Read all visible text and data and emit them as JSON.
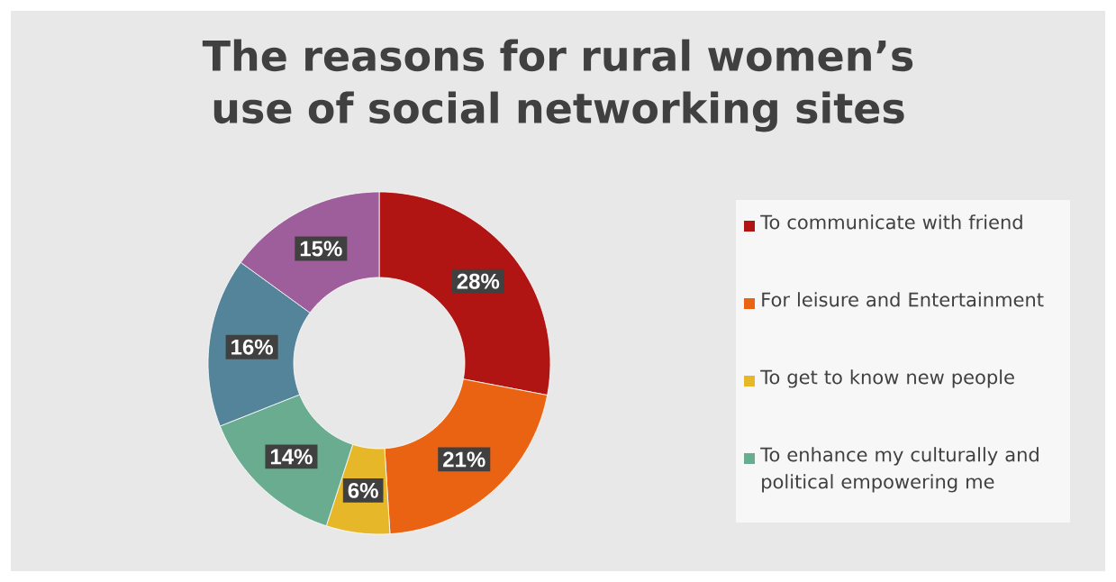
{
  "chart_data": {
    "type": "donut",
    "title": "The reasons for rural women’s use of social networking sites",
    "categories": [
      "To communicate with friend",
      "For leisure and Entertainment",
      "To get to know  new people",
      "To enhance my culturally and political empowering me",
      null,
      null
    ],
    "values": [
      28,
      21,
      6,
      14,
      16,
      15
    ],
    "colors": [
      "#b01513",
      "#ea6312",
      "#e6b729",
      "#6aac90",
      "#54849a",
      "#9e5e9b"
    ],
    "value_labels": [
      "28%",
      "21%",
      "6%",
      "14%",
      "16%",
      "15%"
    ],
    "legend": "right"
  }
}
